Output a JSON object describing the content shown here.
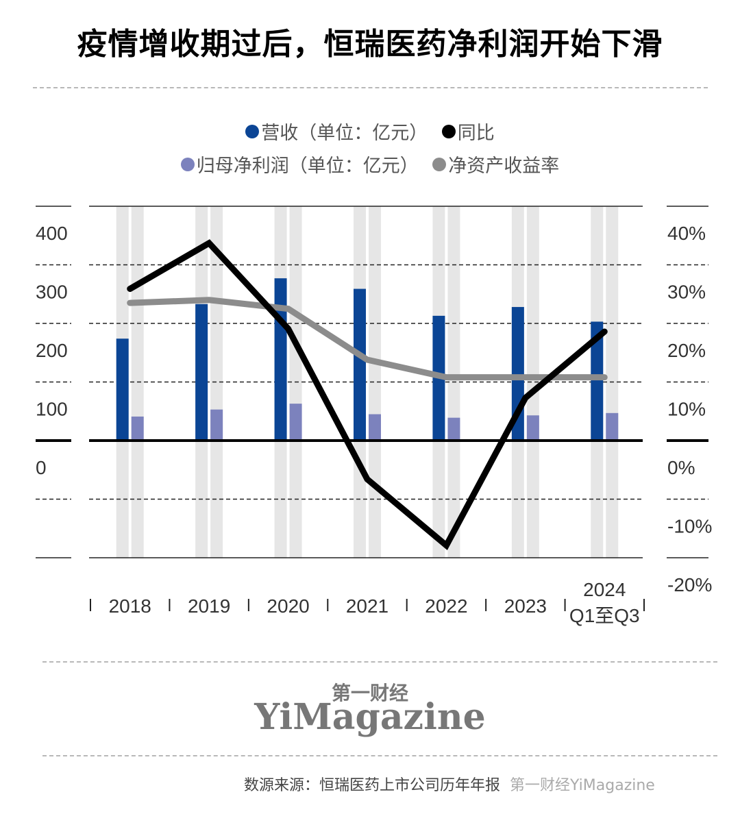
{
  "header": {
    "title": "疫情增收期过后，恒瑞医药净利润开始下滑"
  },
  "legend": {
    "items": [
      {
        "label": "营收（单位：亿元）",
        "color": "#0b4595"
      },
      {
        "label": "同比",
        "color": "#000000"
      },
      {
        "label": "归母净利润（单位：亿元）",
        "color": "#7c82bd"
      },
      {
        "label": "净资产收益率",
        "color": "#8c8c8c"
      }
    ]
  },
  "axes": {
    "left_ticks": [
      "400",
      "300",
      "200",
      "100",
      "0"
    ],
    "right_ticks": [
      "40%",
      "30%",
      "20%",
      "10%",
      "0%",
      "-10%",
      "-20%"
    ],
    "x_ticks": [
      "2018",
      "2019",
      "2020",
      "2021",
      "2022",
      "2023",
      "2024"
    ],
    "x_last_sublabel": "Q1至Q3"
  },
  "chart_data": {
    "type": "bar",
    "title": "疫情增收期过后，恒瑞医药净利润开始下滑",
    "categories": [
      "2018",
      "2019",
      "2020",
      "2021",
      "2022",
      "2023",
      "2024 Q1至Q3"
    ],
    "series": [
      {
        "name": "营收（单位：亿元）",
        "type": "bar",
        "axis": "left",
        "color": "#0b4595",
        "values": [
          174,
          233,
          277,
          259,
          213,
          228,
          203
        ]
      },
      {
        "name": "归母净利润（单位：亿元）",
        "type": "bar",
        "axis": "left",
        "color": "#7c82bd",
        "values": [
          41,
          53,
          63,
          45,
          39,
          43,
          47
        ]
      },
      {
        "name": "同比",
        "type": "line",
        "axis": "right",
        "color": "#000000",
        "values": [
          25.9,
          33.7,
          19.1,
          -6.6,
          -17.9,
          7.3,
          18.6
        ]
      },
      {
        "name": "净资产收益率",
        "type": "line",
        "axis": "right",
        "color": "#8c8c8c",
        "values": [
          23.5,
          24.0,
          22.5,
          13.8,
          10.8,
          10.8,
          10.8
        ]
      }
    ],
    "xlabel": "",
    "ylabel_left": "亿元",
    "ylabel_right": "%",
    "ylim_left": [
      -200,
      400
    ],
    "ylim_right": [
      -20,
      40
    ],
    "grid": true,
    "legend_position": "top"
  },
  "logo": {
    "cn": "第一财经",
    "en": "YiMagazine"
  },
  "footer": {
    "source": "数源来源：恒瑞医药上市公司历年年报",
    "watermark": "第一财经YiMagazine"
  }
}
